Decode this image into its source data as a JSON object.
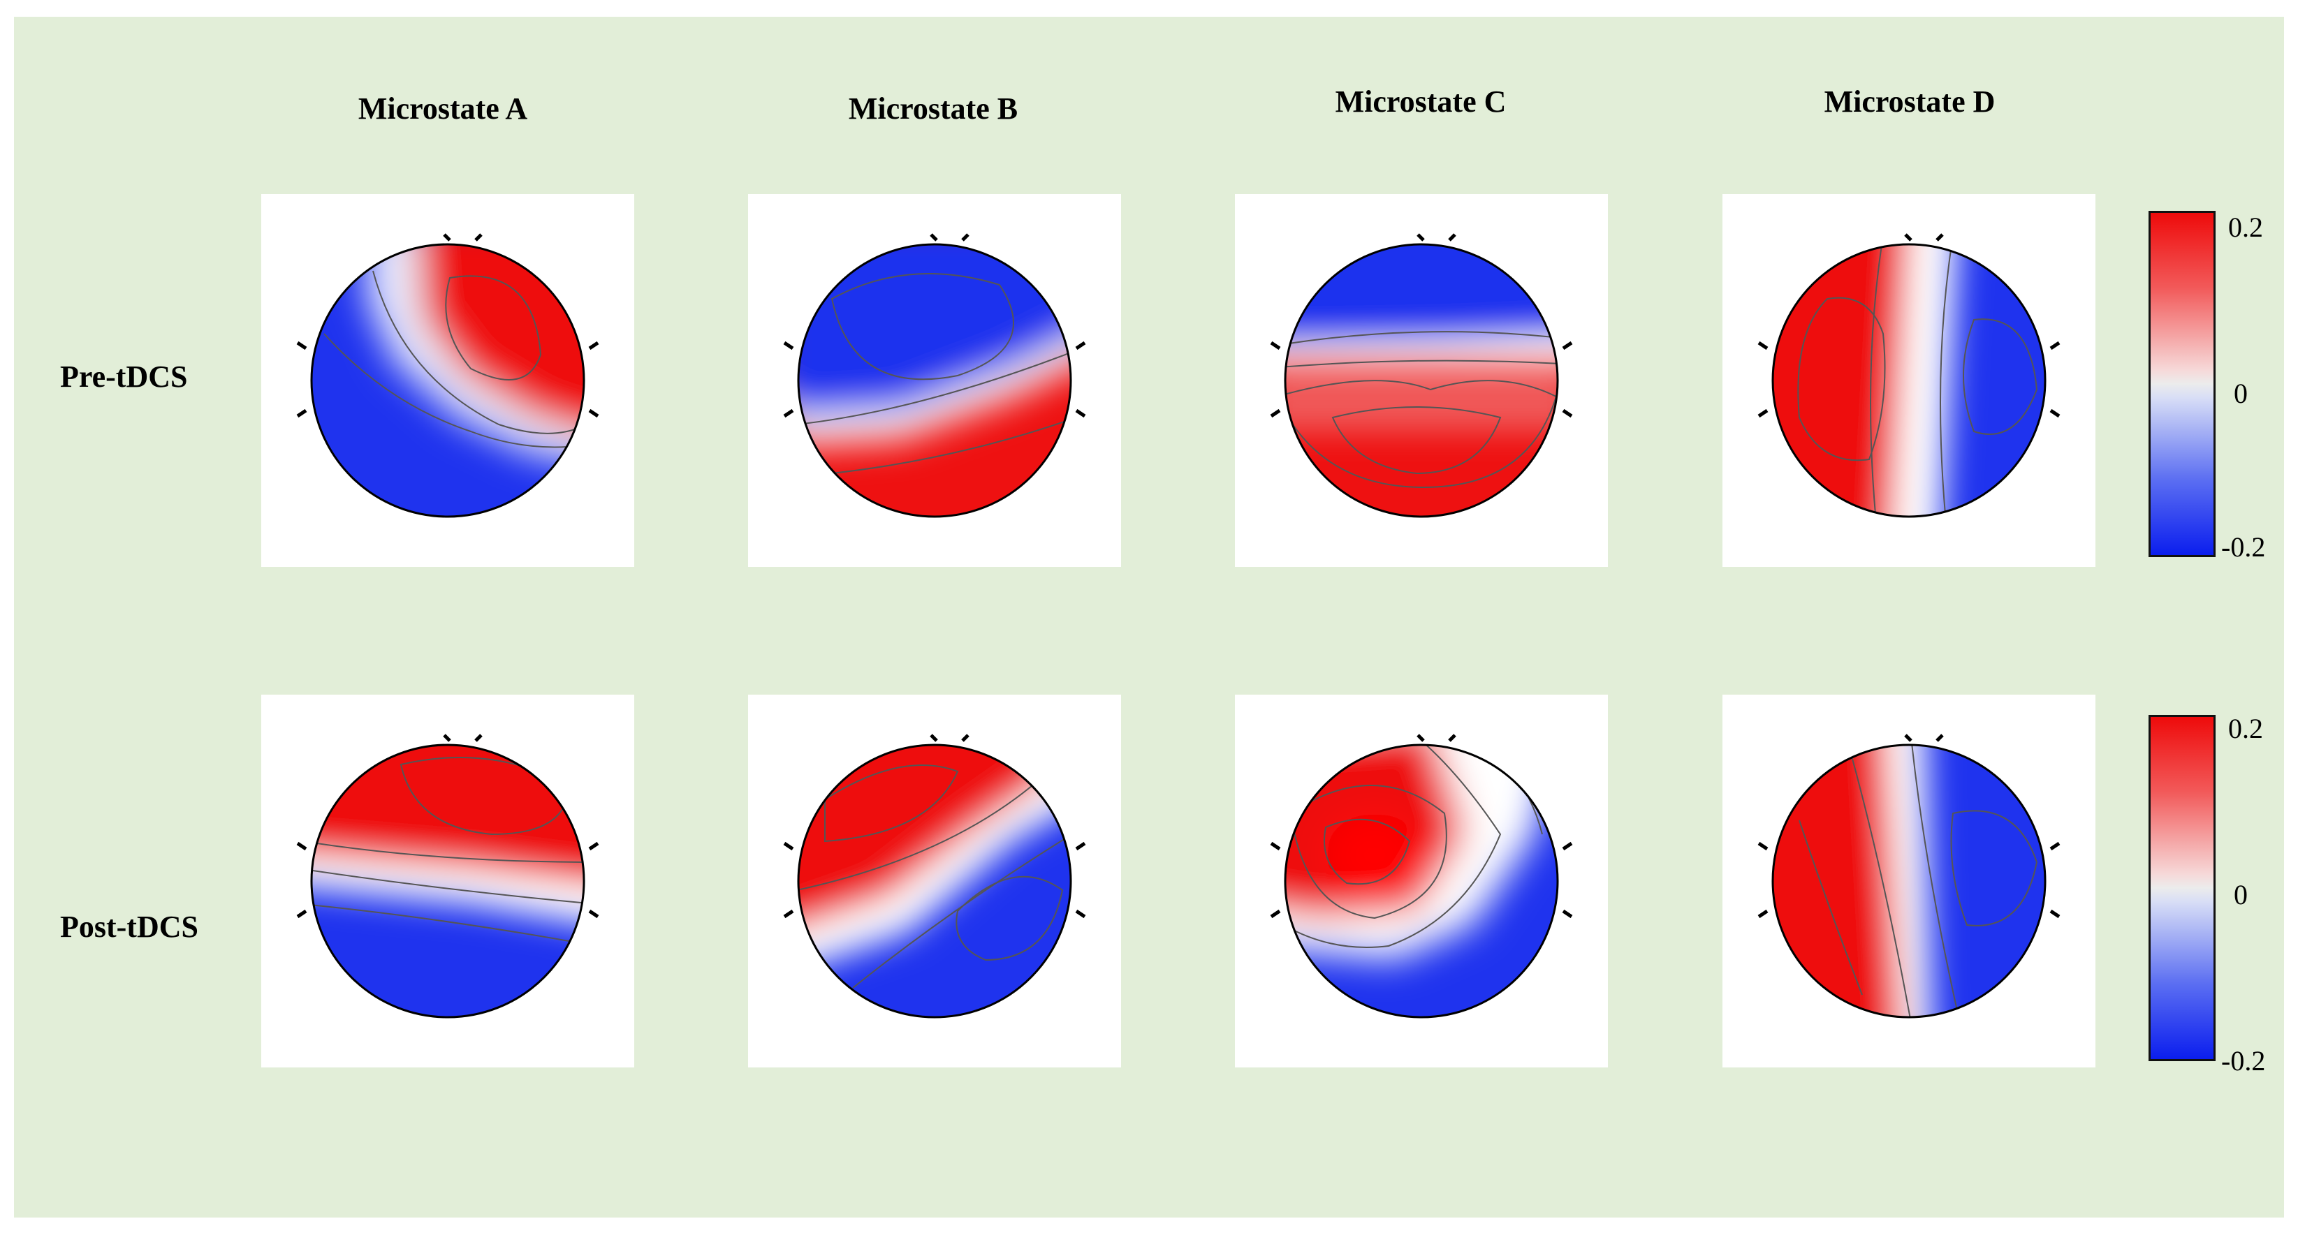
{
  "figure": {
    "column_titles": [
      "Microstate A",
      "Microstate B",
      "Microstate C",
      "Microstate D"
    ],
    "row_titles": [
      "Pre-tDCS",
      "Post-tDCS"
    ],
    "colorbar": {
      "max_label": "0.2",
      "mid_label": "0",
      "min_label": "-0.2",
      "colors": {
        "positive": "#ee0b0b",
        "neutral": "#ececec",
        "negative": "#0b1eee"
      }
    },
    "maps": [
      {
        "row": "Pre-tDCS",
        "column": "Microstate A",
        "pattern": "red anterior-right, blue posterior-left"
      },
      {
        "row": "Pre-tDCS",
        "column": "Microstate B",
        "pattern": "blue anterior-left, red posterior-right"
      },
      {
        "row": "Pre-tDCS",
        "column": "Microstate C",
        "pattern": "blue frontal, red central-posterior"
      },
      {
        "row": "Pre-tDCS",
        "column": "Microstate D",
        "pattern": "red left, blue right"
      },
      {
        "row": "Post-tDCS",
        "column": "Microstate A",
        "pattern": "red frontal, blue posterior"
      },
      {
        "row": "Post-tDCS",
        "column": "Microstate B",
        "pattern": "red anterior-left, blue posterior-right"
      },
      {
        "row": "Post-tDCS",
        "column": "Microstate C",
        "pattern": "red central-left, blue posterior-right"
      },
      {
        "row": "Post-tDCS",
        "column": "Microstate D",
        "pattern": "red left, blue right"
      }
    ]
  }
}
